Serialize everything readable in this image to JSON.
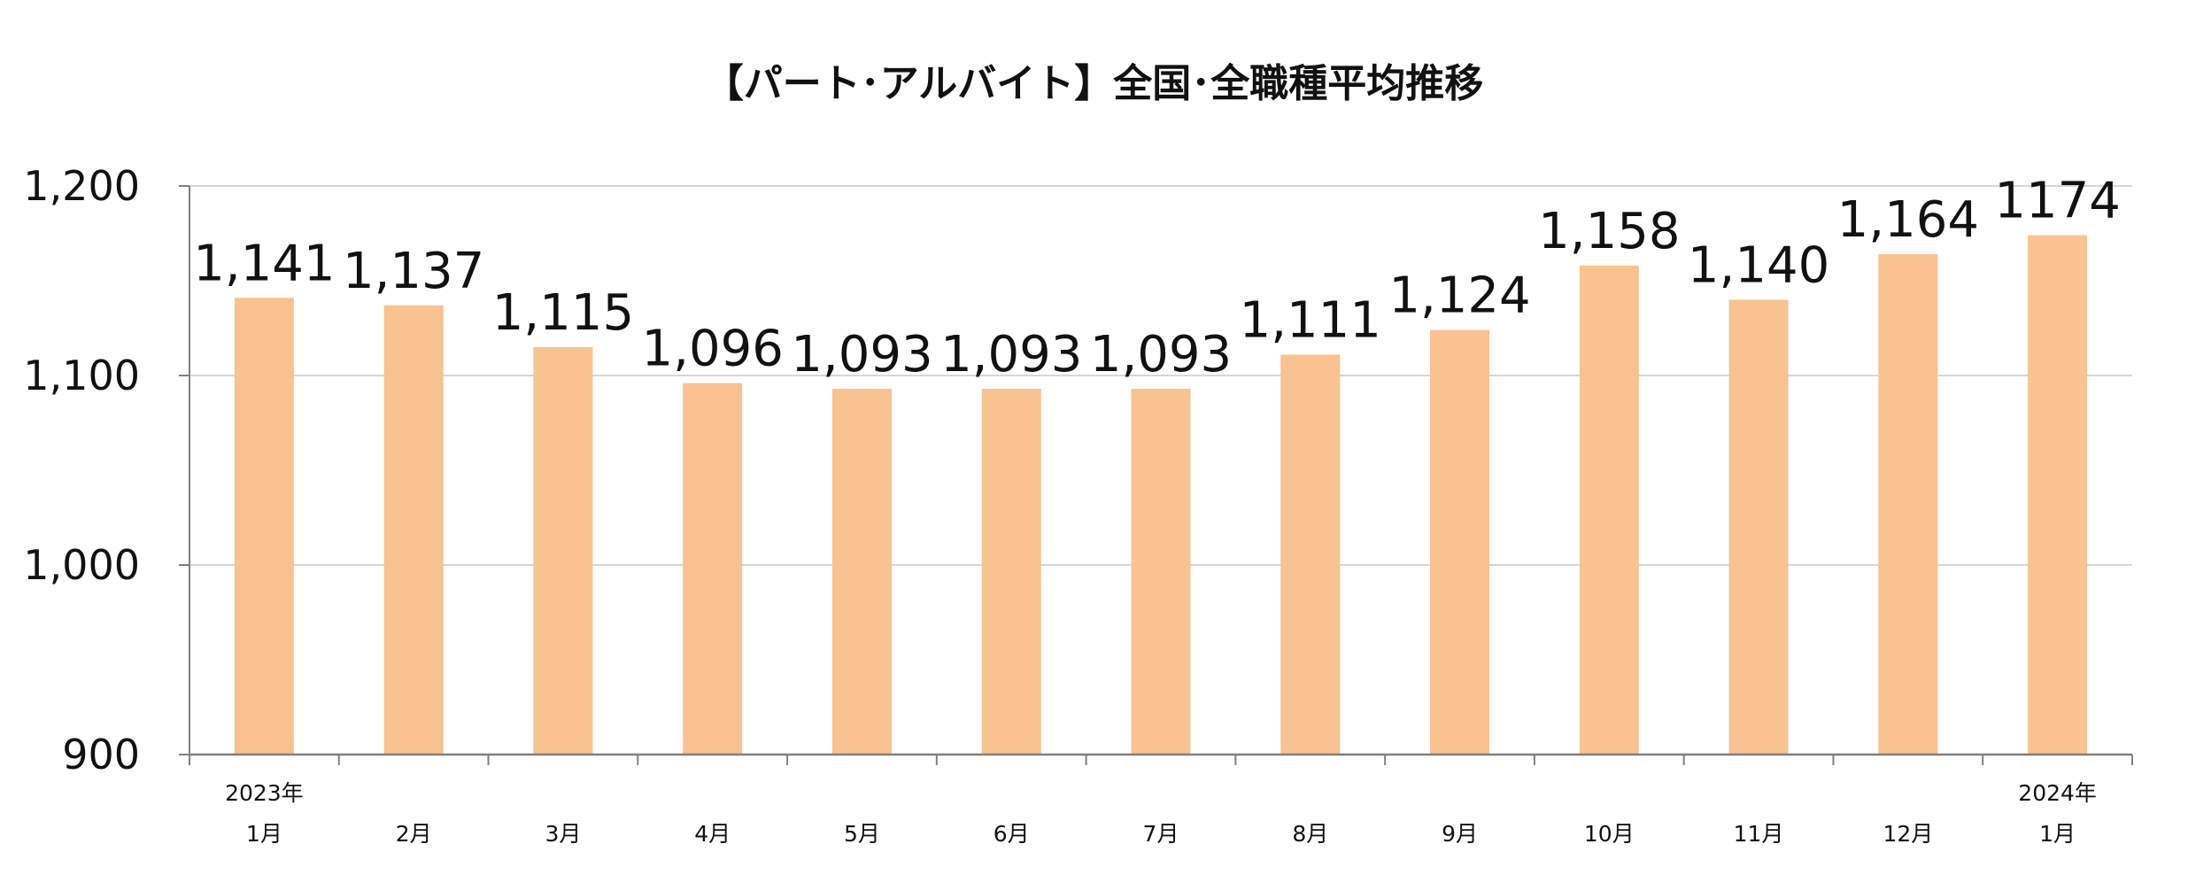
{
  "chart_data": {
    "type": "bar",
    "title": "【パート･アルバイト】全国･全職種平均推移",
    "xlabel": "",
    "ylabel": "",
    "ylim": [
      900,
      1200
    ],
    "yticks": [
      "900",
      "1,000",
      "1,100",
      "1,200"
    ],
    "ytick_values": [
      900,
      1000,
      1100,
      1200
    ],
    "grid": true,
    "legend": "none",
    "bar_color": "#F9C291",
    "categories": [
      {
        "year": "2023年",
        "month": "1月"
      },
      {
        "year": "",
        "month": "2月"
      },
      {
        "year": "",
        "month": "3月"
      },
      {
        "year": "",
        "month": "4月"
      },
      {
        "year": "",
        "month": "5月"
      },
      {
        "year": "",
        "month": "6月"
      },
      {
        "year": "",
        "month": "7月"
      },
      {
        "year": "",
        "month": "8月"
      },
      {
        "year": "",
        "month": "9月"
      },
      {
        "year": "",
        "month": "10月"
      },
      {
        "year": "",
        "month": "11月"
      },
      {
        "year": "",
        "month": "12月"
      },
      {
        "year": "2024年",
        "month": "1月"
      }
    ],
    "values": [
      1141,
      1137,
      1115,
      1096,
      1093,
      1093,
      1093,
      1111,
      1124,
      1158,
      1140,
      1164,
      1174
    ],
    "data_labels": [
      "1,141",
      "1,137",
      "1,115",
      "1,096",
      "1,093",
      "1,093",
      "1,093",
      "1,111",
      "1,124",
      "1,158",
      "1,140",
      "1,164",
      "1174"
    ]
  }
}
